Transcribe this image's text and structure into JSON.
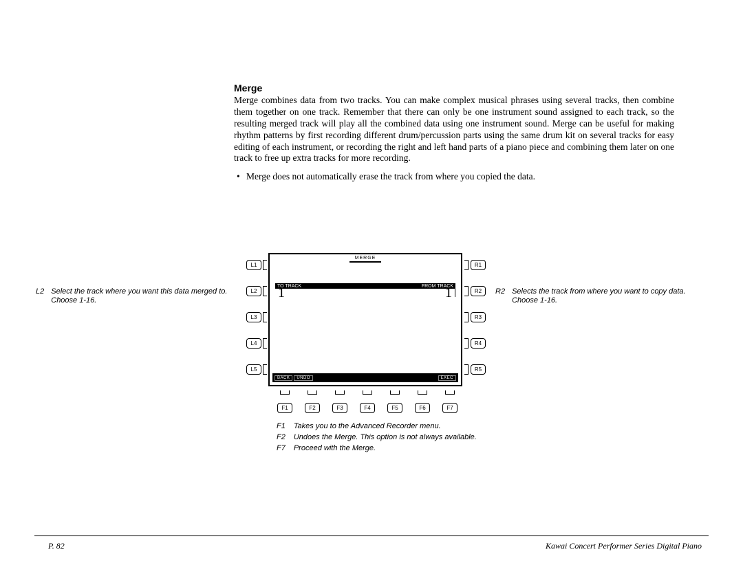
{
  "heading": "Merge",
  "body": "Merge combines data from two tracks.  You can make complex musical phrases using several tracks, then combine them together on one track.  Remember that there can only be one instrument sound assigned to each track, so the resulting merged track will play all the combined data using one instrument sound.  Merge can be useful for making rhythm patterns by first recording different drum/percussion parts using the same drum kit on several tracks for easy editing of each instrument, or recording the right and left hand parts of a piano piece and combining them later on one track to free up extra tracks for more recording.",
  "bullet": "Merge does not automatically erase the track from where you copied the data.",
  "screen": {
    "title": "MERGE",
    "left_label": "TO TRACK",
    "right_label": "FROM TRACK",
    "left_value": "1",
    "right_value": "1",
    "bottom_left": [
      "BACK",
      "UNDO"
    ],
    "bottom_right": "EXEC"
  },
  "side_buttons": {
    "L": [
      "L1",
      "L2",
      "L3",
      "L4",
      "L5"
    ],
    "R": [
      "R1",
      "R2",
      "R3",
      "R4",
      "R5"
    ],
    "F": [
      "F1",
      "F2",
      "F3",
      "F4",
      "F5",
      "F6",
      "F7"
    ]
  },
  "callouts": {
    "L2": {
      "key": "L2",
      "text": "Select the track where you want this data merged to.  Choose 1-16."
    },
    "R2": {
      "key": "R2",
      "text": "Selects the track from where you want to copy data.  Choose 1-16."
    }
  },
  "f_notes": [
    {
      "k": "F1",
      "t": "Takes you to the Advanced Recorder menu."
    },
    {
      "k": "F2",
      "t": "Undoes the Merge.  This option is not always available."
    },
    {
      "k": "F7",
      "t": "Proceed with the Merge."
    }
  ],
  "footer": {
    "page": "P. 82",
    "title": "Kawai Concert Performer Series Digital Piano"
  },
  "layout": {
    "side_row_tops": [
      10,
      48,
      86,
      124,
      162
    ],
    "f_lefts": [
      353,
      393,
      433,
      473,
      513,
      553,
      593
    ]
  }
}
